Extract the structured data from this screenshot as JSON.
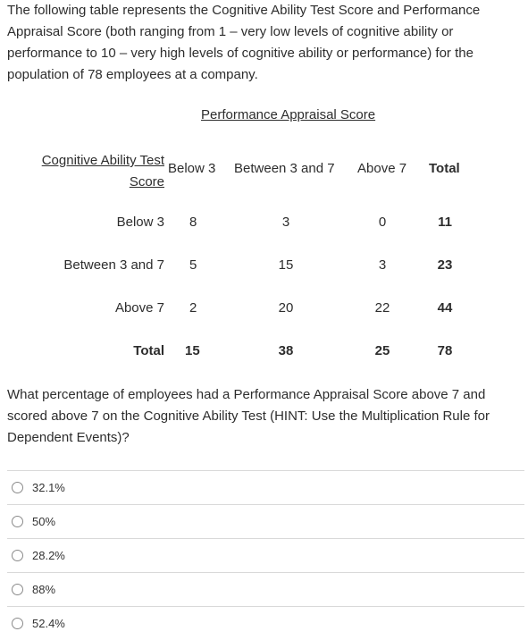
{
  "intro_text": "The following table represents the Cognitive Ability Test Score and Performance Appraisal Score (both ranging from 1 – very low levels of cognitive ability or performance to 10 – very high levels of cognitive ability or performance) for the population of 78 employees at a company.",
  "table": {
    "column_group_header": "Performance Appraisal Score",
    "row_group_header_line1": "Cognitive Ability Test",
    "row_group_header_line2": "Score",
    "columns": [
      "Below 3",
      "Between 3 and 7",
      "Above 7",
      "Total"
    ],
    "rows": [
      {
        "label": "Below 3",
        "cells": [
          "8",
          "3",
          "0",
          "11"
        ]
      },
      {
        "label": "Between 3 and 7",
        "cells": [
          "5",
          "15",
          "3",
          "23"
        ]
      },
      {
        "label": "Above 7",
        "cells": [
          "2",
          "20",
          "22",
          "44"
        ]
      },
      {
        "label": "Total",
        "cells": [
          "15",
          "38",
          "25",
          "78"
        ]
      }
    ]
  },
  "question_text": "What percentage of employees had a Performance Appraisal Score above 7 and scored above 7 on the Cognitive Ability Test (HINT: Use the Multiplication Rule for Dependent Events)?",
  "options": [
    "32.1%",
    "50%",
    "28.2%",
    "88%",
    "52.4%"
  ]
}
